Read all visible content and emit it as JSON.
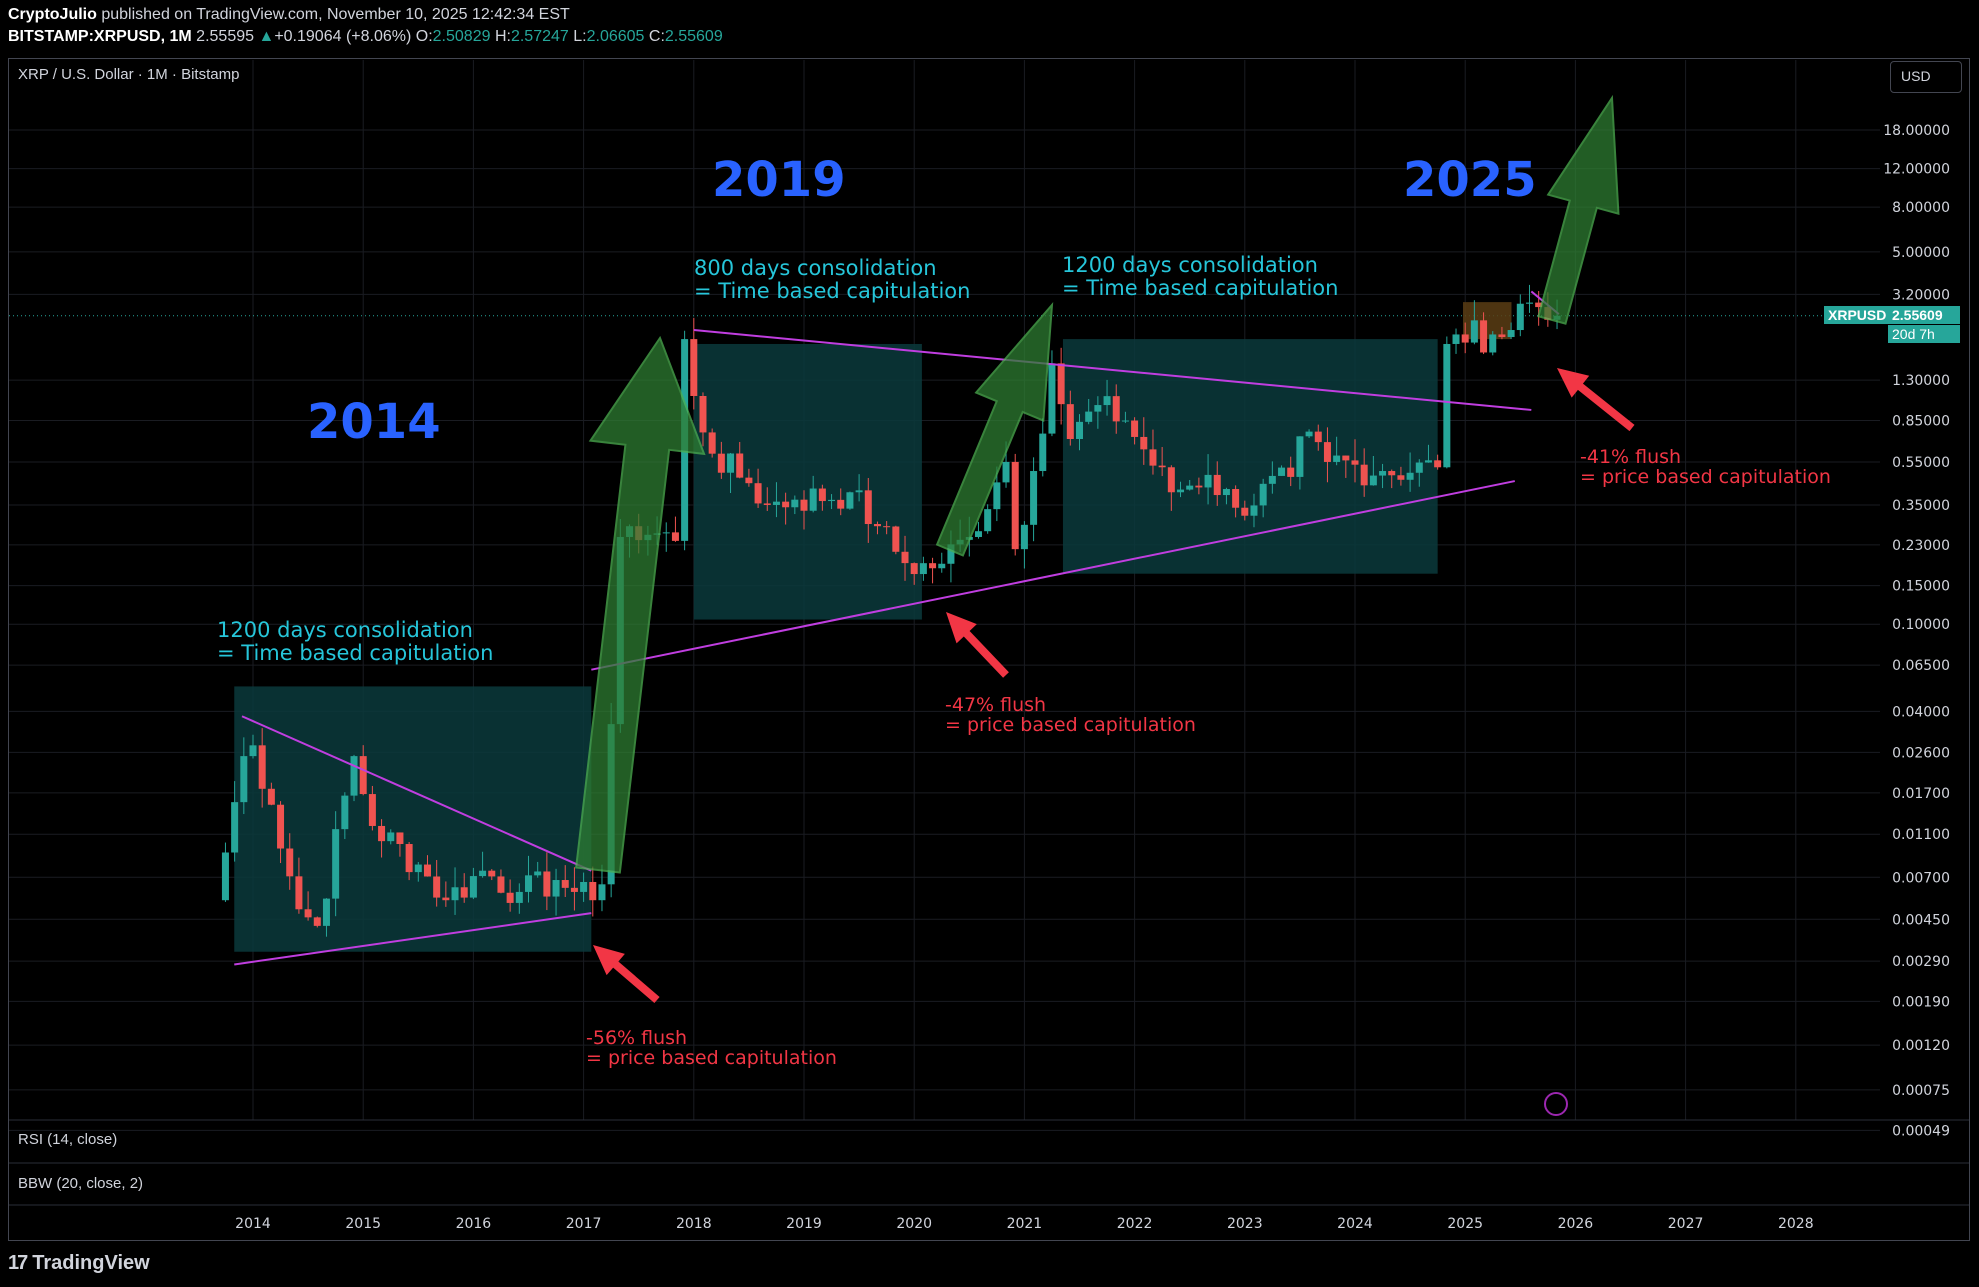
{
  "header": {
    "author": "CryptoJulio",
    "published": "published on TradingView.com, November 10, 2025 12:42:34 EST",
    "symbol": "BITSTAMP:XRPUSD",
    "interval": "1M",
    "last": "2.55595",
    "arrow": "▲",
    "change": "+0.19064 (+8.06%)",
    "o_label": "O:",
    "o": "2.50829",
    "h_label": "H:",
    "h": "2.57247",
    "l_label": "L:",
    "l": "2.06605",
    "c_label": "C:",
    "c": "2.55609"
  },
  "chart_title": "XRP / U.S. Dollar · 1M · Bitstamp",
  "currency_button": "USD",
  "price_tag": {
    "symbol": "XRPUSD",
    "price": "2.55609",
    "countdown": "20d 7h"
  },
  "indicators": {
    "rsi": "RSI (14, close)",
    "bbw": "BBW (20, close, 2)"
  },
  "brand": "TradingView",
  "colors": {
    "up": "#26a69a",
    "down": "#ef5350",
    "trendline": "#c03ee0",
    "year_label": "#2962ff",
    "consolidation_text": "#26c6da",
    "flush_text": "#f23645",
    "box_fill": "#0b3a3c",
    "arrow_fill": "#2e7d32"
  },
  "annotations": {
    "years": [
      "2014",
      "2019",
      "2025"
    ],
    "consolidations": [
      {
        "line1": "1200 days consolidation",
        "line2": "= Time based capitulation"
      },
      {
        "line1": "800 days consolidation",
        "line2": "= Time based capitulation"
      },
      {
        "line1": "1200 days consolidation",
        "line2": "= Time based capitulation"
      }
    ],
    "flushes": [
      {
        "line1": "-56% flush",
        "line2": "= price based capitulation"
      },
      {
        "line1": "-47% flush",
        "line2": "= price based capitulation"
      },
      {
        "line1": "-41% flush",
        "line2": "= price based capitulation"
      }
    ]
  },
  "chart_data": {
    "type": "candlestick",
    "scale": "log",
    "ylim": [
      0.00042,
      26
    ],
    "y_ticks": [
      "18.00000",
      "12.00000",
      "8.00000",
      "5.00000",
      "3.20000",
      "1.30000",
      "0.85000",
      "0.55000",
      "0.35000",
      "0.23000",
      "0.15000",
      "0.10000",
      "0.06500",
      "0.04000",
      "0.02600",
      "0.01700",
      "0.01100",
      "0.00700",
      "0.00450",
      "0.00290",
      "0.00190",
      "0.00120",
      "0.00075",
      "0.00049"
    ],
    "x_ticks": [
      "2014",
      "2015",
      "2016",
      "2017",
      "2018",
      "2019",
      "2020",
      "2021",
      "2022",
      "2023",
      "2024",
      "2025",
      "2026",
      "2027",
      "2028"
    ],
    "anchors": [
      [
        "2013-09",
        0.0055
      ],
      [
        "2013-12",
        0.025
      ],
      [
        "2014-01",
        0.028
      ],
      [
        "2014-03",
        0.015
      ],
      [
        "2014-06",
        0.005
      ],
      [
        "2014-08",
        0.0042
      ],
      [
        "2014-12",
        0.025
      ],
      [
        "2015-02",
        0.012
      ],
      [
        "2015-07",
        0.008
      ],
      [
        "2015-10",
        0.0055
      ],
      [
        "2016-02",
        0.0075
      ],
      [
        "2016-06",
        0.006
      ],
      [
        "2016-10",
        0.0068
      ],
      [
        "2016-12",
        0.006
      ],
      [
        "2017-02",
        0.0055
      ],
      [
        "2017-03",
        0.0065
      ],
      [
        "2017-04",
        0.035
      ],
      [
        "2017-05",
        0.25
      ],
      [
        "2017-06",
        0.28
      ],
      [
        "2017-11",
        0.24
      ],
      [
        "2017-12",
        2.0
      ],
      [
        "2018-01",
        1.1
      ],
      [
        "2018-03",
        0.6
      ],
      [
        "2018-07",
        0.44
      ],
      [
        "2018-09",
        0.35
      ],
      [
        "2018-12",
        0.37
      ],
      [
        "2019-06",
        0.4
      ],
      [
        "2019-09",
        0.28
      ],
      [
        "2019-12",
        0.19
      ],
      [
        "2020-03",
        0.18
      ],
      [
        "2020-07",
        0.25
      ],
      [
        "2020-11",
        0.55
      ],
      [
        "2020-12",
        0.22
      ],
      [
        "2021-02",
        0.5
      ],
      [
        "2021-04",
        1.55
      ],
      [
        "2021-06",
        0.7
      ],
      [
        "2021-09",
        1.0
      ],
      [
        "2021-12",
        0.85
      ],
      [
        "2022-05",
        0.4
      ],
      [
        "2022-09",
        0.48
      ],
      [
        "2022-12",
        0.34
      ],
      [
        "2023-06",
        0.47
      ],
      [
        "2023-07",
        0.72
      ],
      [
        "2023-10",
        0.55
      ],
      [
        "2024-04",
        0.5
      ],
      [
        "2024-10",
        0.52
      ],
      [
        "2024-11",
        1.9
      ],
      [
        "2024-12",
        2.1
      ],
      [
        "2025-04",
        2.1
      ],
      [
        "2025-06",
        2.2
      ],
      [
        "2025-07",
        2.9
      ],
      [
        "2025-09",
        2.8
      ],
      [
        "2025-10",
        2.45
      ],
      [
        "2025-11",
        2.556
      ]
    ]
  }
}
